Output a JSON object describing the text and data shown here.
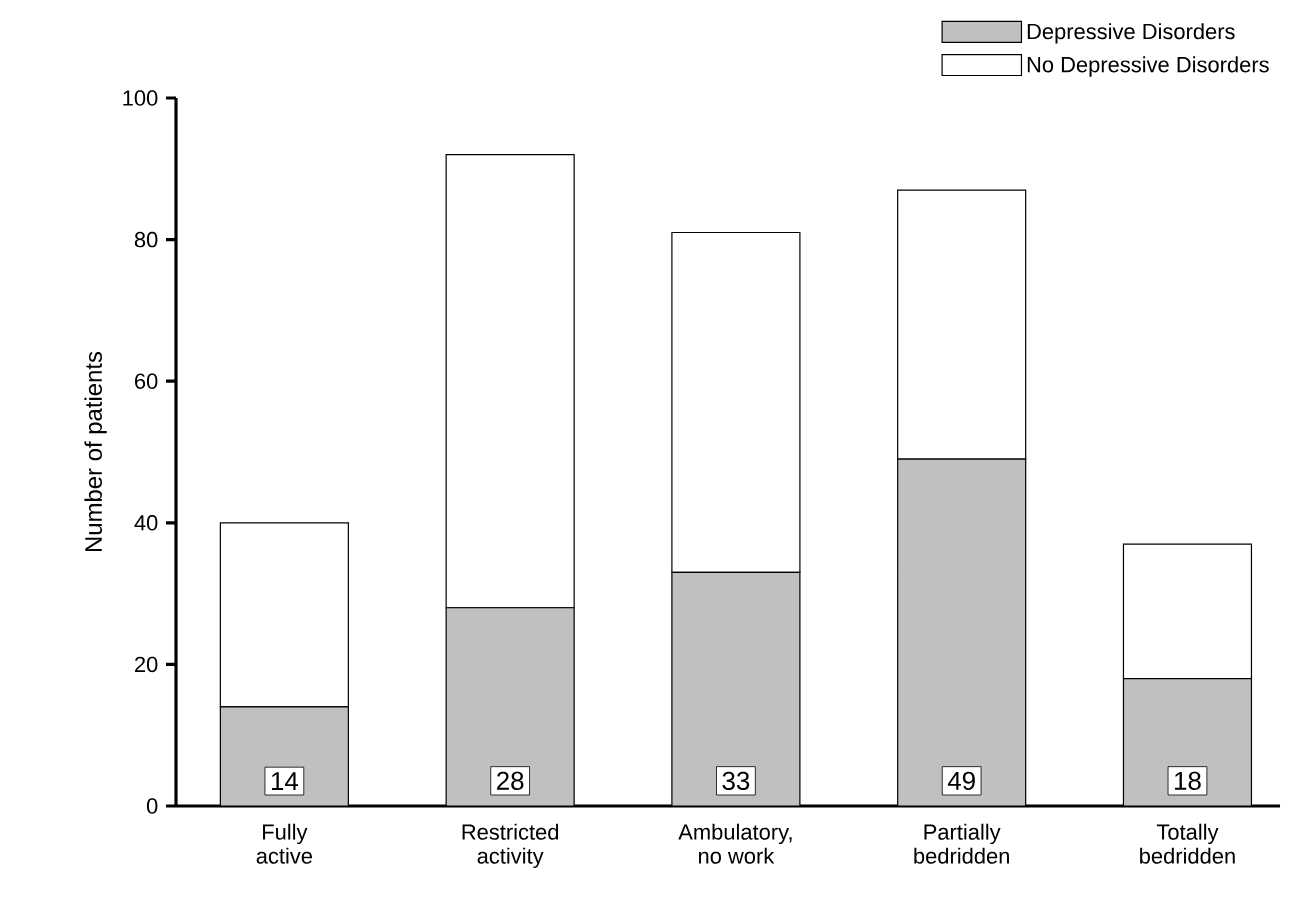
{
  "chart_data": {
    "type": "bar",
    "stacked": true,
    "ylabel": "Number of patients",
    "categories": [
      "Fully\nactive",
      "Restricted\nactivity",
      "Ambulatory,\nno work",
      "Partially\nbedridden",
      "Totally\nbedridden"
    ],
    "series": [
      {
        "name": "Depressive Disorders",
        "color": "#c0c0c0",
        "values": [
          14,
          28,
          33,
          49,
          18
        ],
        "value_labels": [
          "14",
          "28",
          "33",
          "49",
          "18"
        ]
      },
      {
        "name": "No Depressive Disorders",
        "color": "#ffffff",
        "values": [
          26,
          64,
          48,
          38,
          19
        ]
      }
    ],
    "ylim": [
      0,
      100
    ],
    "yticks": [
      0,
      20,
      40,
      60,
      80,
      100
    ],
    "legend": "top right",
    "grid": false
  }
}
